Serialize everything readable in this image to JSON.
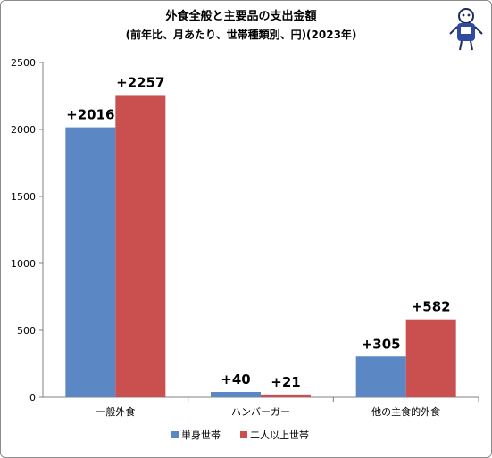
{
  "chart_data": {
    "type": "bar",
    "title": "外食全般と主要品の支出金額",
    "subtitle": "(前年比、月あたり、世帯種類別、円)(2023年)",
    "categories": [
      "一般外食",
      "ハンバーガー",
      "他の主食的外食"
    ],
    "series": [
      {
        "name": "単身世帯",
        "values": [
          2016,
          40,
          305
        ],
        "labels": [
          "+2016",
          "+40",
          "+305"
        ],
        "color": "#5b87c5"
      },
      {
        "name": "二人以上世帯",
        "values": [
          2257,
          21,
          582
        ],
        "labels": [
          "+2257",
          "+21",
          "+582"
        ],
        "color": "#c9504f"
      }
    ],
    "ylim": [
      0,
      2500
    ],
    "yticks": [
      0,
      500,
      1000,
      1500,
      2000,
      2500
    ],
    "grid": false,
    "legend": "bottom"
  }
}
